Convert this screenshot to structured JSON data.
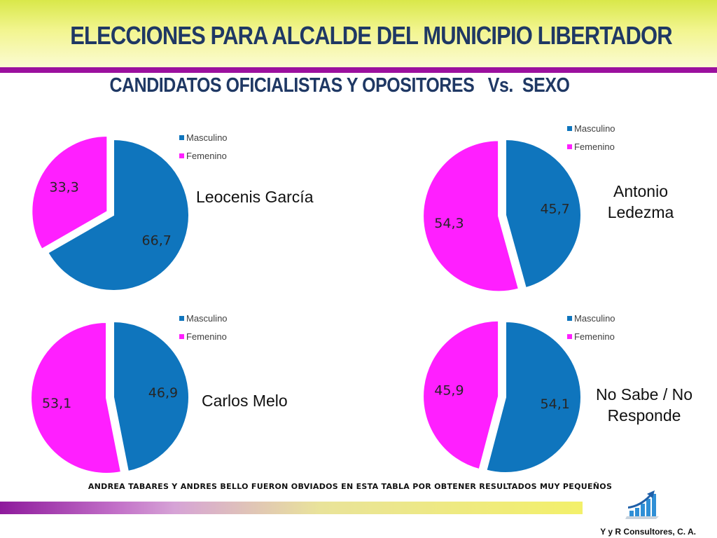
{
  "header": {
    "title": "ELECCIONES PARA ALCALDE DEL MUNICIPIO LIBERTADOR",
    "subtitle": "CANDIDATOS OFICIALISTAS Y OPOSITORES   Vs.  SEXO"
  },
  "colors": {
    "masculino": "#0f75bd",
    "femenino": "#ff1fff"
  },
  "chart_data": [
    {
      "type": "pie",
      "candidate": "Leocenis García",
      "categories": [
        "Masculino",
        "Femenino"
      ],
      "values": [
        66.7,
        33.3
      ],
      "value_labels": [
        "66,7",
        "33,3"
      ],
      "legend": "top-right",
      "exploded": "Femenino"
    },
    {
      "type": "pie",
      "candidate_lines": [
        "Antonio",
        "Ledezma"
      ],
      "categories": [
        "Masculino",
        "Femenino"
      ],
      "values": [
        45.7,
        54.3
      ],
      "value_labels": [
        "45,7",
        "54,3"
      ],
      "legend": "top-right",
      "exploded": "Femenino"
    },
    {
      "type": "pie",
      "candidate": "Carlos Melo",
      "categories": [
        "Masculino",
        "Femenino"
      ],
      "values": [
        46.9,
        53.1
      ],
      "value_labels": [
        "46,9",
        "53,1"
      ],
      "legend": "top-right",
      "exploded": "Femenino"
    },
    {
      "type": "pie",
      "candidate_lines": [
        "No Sabe / No",
        "Responde"
      ],
      "categories": [
        "Masculino",
        "Femenino"
      ],
      "values": [
        54.1,
        45.9
      ],
      "value_labels": [
        "54,1",
        "45,9"
      ],
      "legend": "top-right",
      "exploded": "Femenino"
    }
  ],
  "footnote": "ANDREA TABARES Y ANDRES BELLO FUERON OBVIADOS EN ESTA TABLA POR OBTENER RESULTADOS MUY PEQUEÑOS",
  "company": "Y y R Consultores, C. A.",
  "logo_icon": "growth-bar-chart-arrow-icon"
}
